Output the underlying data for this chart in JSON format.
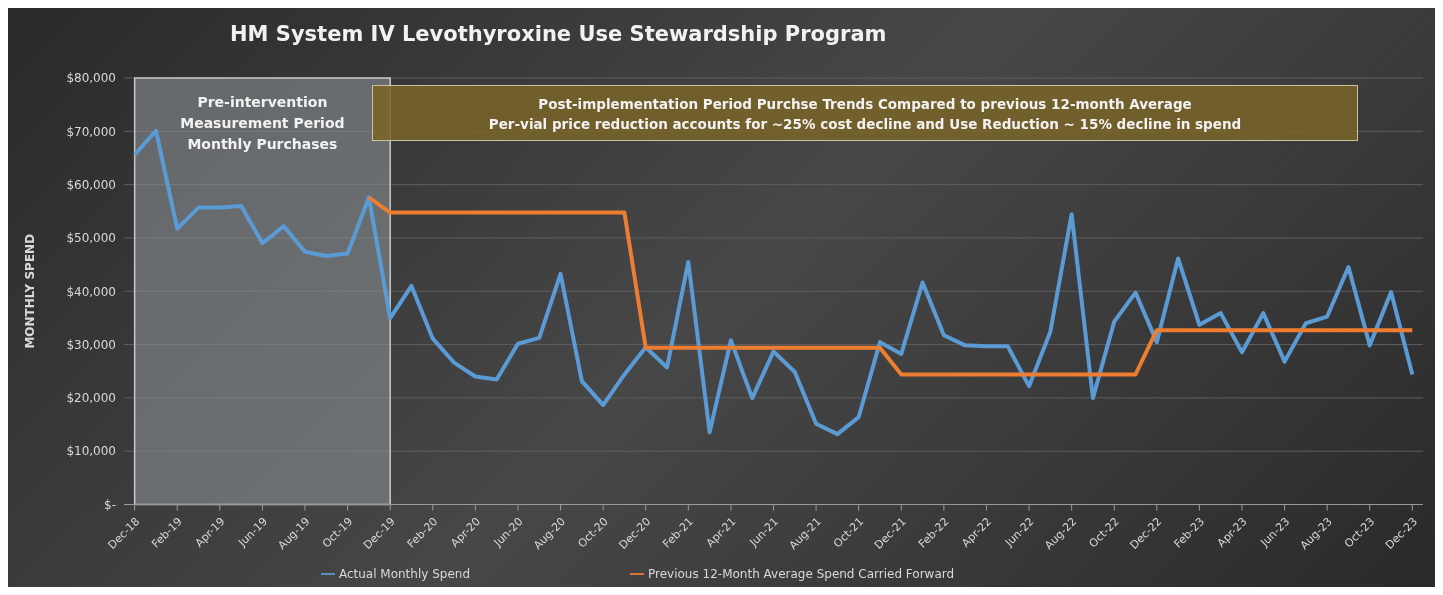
{
  "chart_data": {
    "type": "line",
    "title": "HM System IV Levothyroxine Use Stewardship Program",
    "ylabel": "MONTHLY SPEND",
    "categories": [
      "Dec-18",
      null,
      "Feb-19",
      null,
      "Apr-19",
      null,
      "Jun-19",
      null,
      "Aug-19",
      null,
      "Oct-19",
      null,
      "Dec-19",
      null,
      "Feb-20",
      null,
      "Apr-20",
      null,
      "Jun-20",
      null,
      "Aug-20",
      null,
      "Oct-20",
      null,
      "Dec-20",
      null,
      "Feb-21",
      null,
      "Apr-21",
      null,
      "Jun-21",
      null,
      "Aug-21",
      null,
      "Oct-21",
      null,
      "Dec-21",
      null,
      "Feb-22",
      null,
      "Apr-22",
      null,
      "Jun-22",
      null,
      "Aug-22",
      null,
      "Oct-22",
      null,
      "Dec-22",
      null,
      "Feb-23",
      null,
      "Apr-23",
      null,
      "Jun-23",
      null,
      "Aug-23",
      null,
      "Oct-23",
      null,
      "Dec-23"
    ],
    "series": [
      {
        "name": "Actual Monthly Spend",
        "color": "#5b9bd5",
        "values": [
          65600,
          70100,
          51750,
          55700,
          55700,
          56000,
          49000,
          52200,
          47400,
          46600,
          47100,
          57600,
          34950,
          41000,
          31100,
          26600,
          24000,
          23450,
          30150,
          31250,
          43250,
          23150,
          18650,
          24400,
          29500,
          25700,
          45500,
          13550,
          30800,
          19950,
          28700,
          24850,
          15150,
          13200,
          16400,
          30450,
          28250,
          41650,
          31750,
          29850,
          29700,
          29700,
          22200,
          32400,
          54450,
          19950,
          34300,
          39750,
          30450,
          46150,
          33700,
          35900,
          28550,
          35900,
          26800,
          34000,
          35250,
          44550,
          29850,
          39850,
          24400
        ]
      },
      {
        "name": "Previous 12-Month Average Spend Carried Forward",
        "color": "#ed7d31",
        "values": [
          null,
          null,
          null,
          null,
          null,
          null,
          null,
          null,
          null,
          null,
          null,
          57600,
          54750,
          54750,
          54750,
          54750,
          54750,
          54750,
          54750,
          54750,
          54750,
          54750,
          54750,
          54750,
          29400,
          29400,
          29400,
          29400,
          29400,
          29400,
          29400,
          29400,
          29400,
          29400,
          29400,
          29400,
          24400,
          24400,
          24400,
          24400,
          24400,
          24400,
          24400,
          24400,
          24400,
          24400,
          24400,
          24400,
          32700,
          32700,
          32700,
          32700,
          32700,
          32700,
          32700,
          32700,
          32700,
          32700,
          32700,
          32700,
          32700
        ]
      }
    ],
    "ylim": [
      0,
      80000
    ],
    "yticks": [
      {
        "value": 0,
        "label": "$-"
      },
      {
        "value": 10000,
        "label": "$10,000"
      },
      {
        "value": 20000,
        "label": "$20,000"
      },
      {
        "value": 30000,
        "label": "$30,000"
      },
      {
        "value": 40000,
        "label": "$40,000"
      },
      {
        "value": 50000,
        "label": "$50,000"
      },
      {
        "value": 60000,
        "label": "$60,000"
      },
      {
        "value": 70000,
        "label": "$70,000"
      },
      {
        "value": 80000,
        "label": "$80,000"
      }
    ],
    "bands": [
      {
        "axis": "x",
        "from": "Dec-18",
        "to": "Dec-19",
        "label": "Pre-intervention Measurement Period Monthly Purchases",
        "color": "#8a8f94"
      }
    ],
    "annotations": [
      "Post-implementation Period Purchse Trends Compared to previous 12-month Average",
      "Per-vial price reduction accounts for ~25% cost decline and Use Reduction ~ 15% decline in spend"
    ],
    "grid": "y",
    "legend": "bottom"
  }
}
